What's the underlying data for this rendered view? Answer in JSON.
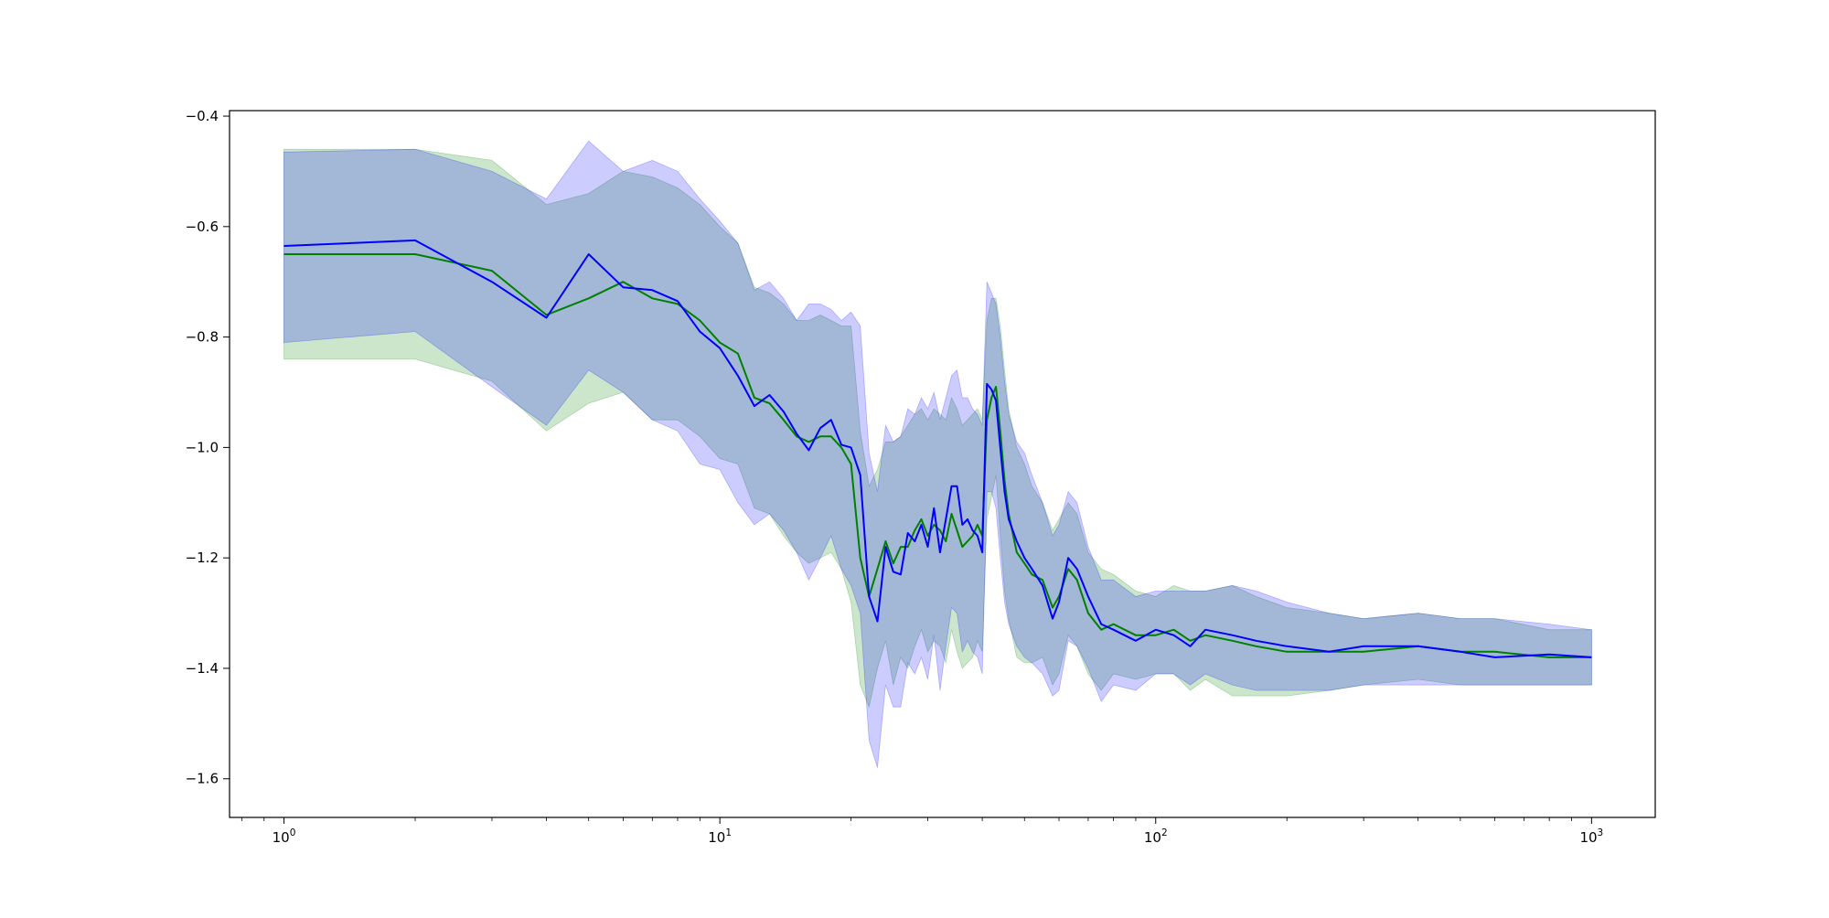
{
  "chart_data": {
    "type": "line",
    "title": "",
    "xlabel": "",
    "ylabel": "",
    "xscale": "log",
    "xlim": [
      0.75,
      1400
    ],
    "ylim": [
      -1.67,
      -0.39
    ],
    "grid": false,
    "legend": "none",
    "x_ticks": [
      {
        "value": 1,
        "base": "10",
        "exp": "0"
      },
      {
        "value": 10,
        "base": "10",
        "exp": "1"
      },
      {
        "value": 100,
        "base": "10",
        "exp": "2"
      },
      {
        "value": 1000,
        "base": "10",
        "exp": "3"
      }
    ],
    "y_ticks": [
      {
        "value": -0.4,
        "label": "−0.4"
      },
      {
        "value": -0.6,
        "label": "−0.6"
      },
      {
        "value": -0.8,
        "label": "−0.8"
      },
      {
        "value": -1.0,
        "label": "−1.0"
      },
      {
        "value": -1.2,
        "label": "−1.2"
      },
      {
        "value": -1.4,
        "label": "−1.4"
      },
      {
        "value": -1.6,
        "label": "−1.6"
      }
    ],
    "series": [
      {
        "color": "#008000",
        "band_color": "#008000",
        "x": [
          1,
          2,
          3,
          4,
          5,
          6,
          7,
          8,
          9,
          10,
          11,
          12,
          13,
          14,
          15,
          16,
          17,
          18,
          19,
          20,
          21,
          22,
          23,
          24,
          25,
          26,
          27,
          28,
          29,
          30,
          31,
          32,
          33,
          34,
          35,
          36,
          37,
          38,
          39,
          40,
          41,
          42,
          43,
          44,
          45,
          46,
          48,
          50,
          52,
          55,
          58,
          60,
          63,
          66,
          70,
          75,
          80,
          90,
          100,
          110,
          120,
          130,
          150,
          170,
          200,
          250,
          300,
          400,
          500,
          600,
          800,
          1000
        ],
        "mean": [
          -0.65,
          -0.65,
          -0.68,
          -0.76,
          -0.73,
          -0.7,
          -0.73,
          -0.74,
          -0.77,
          -0.81,
          -0.83,
          -0.91,
          -0.92,
          -0.95,
          -0.98,
          -0.99,
          -0.98,
          -0.98,
          -1.0,
          -1.03,
          -1.2,
          -1.27,
          -1.22,
          -1.17,
          -1.21,
          -1.18,
          -1.18,
          -1.15,
          -1.13,
          -1.16,
          -1.14,
          -1.15,
          -1.17,
          -1.12,
          -1.15,
          -1.18,
          -1.17,
          -1.16,
          -1.14,
          -1.16,
          -0.95,
          -0.91,
          -0.89,
          -0.97,
          -1.06,
          -1.12,
          -1.19,
          -1.21,
          -1.23,
          -1.24,
          -1.29,
          -1.27,
          -1.22,
          -1.24,
          -1.3,
          -1.33,
          -1.32,
          -1.34,
          -1.34,
          -1.33,
          -1.35,
          -1.34,
          -1.35,
          -1.36,
          -1.37,
          -1.37,
          -1.37,
          -1.36,
          -1.37,
          -1.37,
          -1.38,
          -1.38
        ],
        "upper": [
          -0.46,
          -0.46,
          -0.48,
          -0.56,
          -0.54,
          -0.5,
          -0.51,
          -0.53,
          -0.56,
          -0.6,
          -0.63,
          -0.71,
          -0.72,
          -0.74,
          -0.77,
          -0.77,
          -0.76,
          -0.77,
          -0.78,
          -0.78,
          -0.97,
          -1.07,
          -1.04,
          -0.99,
          -0.99,
          -0.98,
          -0.96,
          -0.94,
          -0.93,
          -0.95,
          -0.93,
          -0.94,
          -0.95,
          -0.91,
          -0.93,
          -0.96,
          -0.95,
          -0.94,
          -0.93,
          -0.95,
          -0.77,
          -0.73,
          -0.73,
          -0.78,
          -0.86,
          -0.93,
          -1.0,
          -1.03,
          -1.07,
          -1.1,
          -1.15,
          -1.13,
          -1.1,
          -1.12,
          -1.19,
          -1.22,
          -1.23,
          -1.26,
          -1.27,
          -1.25,
          -1.26,
          -1.26,
          -1.25,
          -1.27,
          -1.29,
          -1.3,
          -1.31,
          -1.3,
          -1.31,
          -1.31,
          -1.33,
          -1.33
        ],
        "lower": [
          -0.84,
          -0.84,
          -0.88,
          -0.97,
          -0.92,
          -0.9,
          -0.95,
          -0.95,
          -0.98,
          -1.02,
          -1.03,
          -1.11,
          -1.12,
          -1.16,
          -1.19,
          -1.21,
          -1.2,
          -1.19,
          -1.22,
          -1.28,
          -1.43,
          -1.47,
          -1.4,
          -1.35,
          -1.43,
          -1.38,
          -1.4,
          -1.36,
          -1.33,
          -1.37,
          -1.35,
          -1.36,
          -1.39,
          -1.33,
          -1.37,
          -1.4,
          -1.39,
          -1.38,
          -1.35,
          -1.37,
          -1.13,
          -1.09,
          -1.05,
          -1.16,
          -1.26,
          -1.31,
          -1.38,
          -1.39,
          -1.39,
          -1.38,
          -1.43,
          -1.41,
          -1.34,
          -1.36,
          -1.41,
          -1.44,
          -1.41,
          -1.42,
          -1.41,
          -1.41,
          -1.44,
          -1.42,
          -1.45,
          -1.45,
          -1.45,
          -1.44,
          -1.43,
          -1.42,
          -1.43,
          -1.43,
          -1.43,
          -1.43
        ]
      },
      {
        "color": "#0000ff",
        "band_color": "#0000ff",
        "x": [
          1,
          2,
          3,
          4,
          5,
          6,
          7,
          8,
          9,
          10,
          11,
          12,
          13,
          14,
          15,
          16,
          17,
          18,
          19,
          20,
          21,
          22,
          23,
          24,
          25,
          26,
          27,
          28,
          29,
          30,
          31,
          32,
          33,
          34,
          35,
          36,
          37,
          38,
          39,
          40,
          41,
          42,
          43,
          44,
          45,
          46,
          48,
          50,
          52,
          55,
          58,
          60,
          63,
          66,
          70,
          75,
          80,
          90,
          100,
          110,
          120,
          130,
          150,
          170,
          200,
          250,
          300,
          400,
          500,
          600,
          800,
          1000
        ],
        "mean": [
          -0.635,
          -0.625,
          -0.7,
          -0.765,
          -0.65,
          -0.71,
          -0.715,
          -0.735,
          -0.79,
          -0.82,
          -0.87,
          -0.925,
          -0.905,
          -0.935,
          -0.975,
          -1.005,
          -0.965,
          -0.95,
          -0.995,
          -1.0,
          -1.05,
          -1.27,
          -1.315,
          -1.18,
          -1.225,
          -1.23,
          -1.155,
          -1.17,
          -1.14,
          -1.18,
          -1.11,
          -1.19,
          -1.13,
          -1.07,
          -1.07,
          -1.14,
          -1.13,
          -1.15,
          -1.16,
          -1.19,
          -0.885,
          -0.895,
          -0.915,
          -1.0,
          -1.08,
          -1.13,
          -1.17,
          -1.2,
          -1.22,
          -1.25,
          -1.31,
          -1.28,
          -1.2,
          -1.22,
          -1.27,
          -1.32,
          -1.33,
          -1.35,
          -1.33,
          -1.34,
          -1.36,
          -1.33,
          -1.34,
          -1.35,
          -1.36,
          -1.37,
          -1.36,
          -1.36,
          -1.37,
          -1.38,
          -1.375,
          -1.38
        ],
        "upper": [
          -0.465,
          -0.46,
          -0.5,
          -0.55,
          -0.445,
          -0.5,
          -0.48,
          -0.5,
          -0.55,
          -0.59,
          -0.63,
          -0.715,
          -0.7,
          -0.73,
          -0.77,
          -0.74,
          -0.74,
          -0.75,
          -0.77,
          -0.755,
          -0.78,
          -1.01,
          -1.08,
          -0.96,
          -0.99,
          -0.98,
          -0.93,
          -0.94,
          -0.91,
          -0.93,
          -0.9,
          -0.95,
          -0.91,
          -0.87,
          -0.86,
          -0.91,
          -0.91,
          -0.93,
          -0.94,
          -0.96,
          -0.7,
          -0.72,
          -0.74,
          -0.8,
          -0.88,
          -0.94,
          -0.99,
          -1.01,
          -1.05,
          -1.1,
          -1.16,
          -1.14,
          -1.08,
          -1.1,
          -1.18,
          -1.24,
          -1.24,
          -1.27,
          -1.26,
          -1.26,
          -1.26,
          -1.26,
          -1.25,
          -1.26,
          -1.28,
          -1.3,
          -1.31,
          -1.3,
          -1.31,
          -1.31,
          -1.32,
          -1.33
        ],
        "lower": [
          -0.81,
          -0.79,
          -0.89,
          -0.96,
          -0.86,
          -0.9,
          -0.95,
          -0.97,
          -1.03,
          -1.04,
          -1.1,
          -1.14,
          -1.12,
          -1.15,
          -1.19,
          -1.24,
          -1.2,
          -1.16,
          -1.22,
          -1.25,
          -1.3,
          -1.53,
          -1.58,
          -1.43,
          -1.47,
          -1.47,
          -1.39,
          -1.41,
          -1.38,
          -1.42,
          -1.34,
          -1.44,
          -1.36,
          -1.29,
          -1.3,
          -1.37,
          -1.35,
          -1.37,
          -1.38,
          -1.41,
          -1.08,
          -1.08,
          -1.11,
          -1.2,
          -1.28,
          -1.32,
          -1.36,
          -1.38,
          -1.39,
          -1.41,
          -1.45,
          -1.44,
          -1.35,
          -1.36,
          -1.4,
          -1.46,
          -1.43,
          -1.44,
          -1.41,
          -1.41,
          -1.43,
          -1.41,
          -1.43,
          -1.44,
          -1.44,
          -1.44,
          -1.43,
          -1.43,
          -1.43,
          -1.43,
          -1.43,
          -1.43
        ]
      }
    ]
  }
}
